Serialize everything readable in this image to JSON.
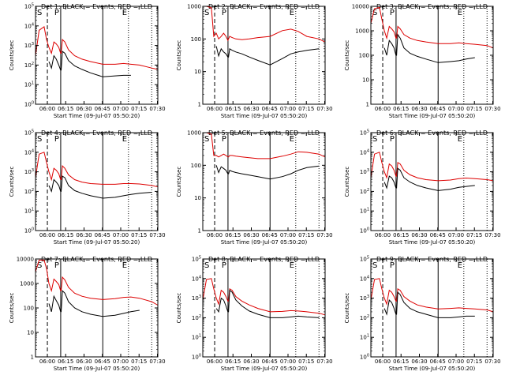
{
  "chart_data": {
    "type": "line",
    "xlabel": "Start Time (09-Jul-07 05:50:20)",
    "ylabel": "Counts/sec",
    "x_ticks": [
      "06:00",
      "06:15",
      "06:30",
      "06:45",
      "07:00",
      "07:15",
      "07:30"
    ],
    "x_range_minutes": [
      0,
      100
    ],
    "series_names": [
      "BLACK = Events",
      "RED = LLD"
    ],
    "colors": {
      "events": "#000000",
      "lld": "#dd0000"
    },
    "markers": {
      "dashed_minute": 9.7,
      "solid_minutes": [
        20.6,
        55.0
      ],
      "dotted_minutes": [
        76.0,
        95.0
      ]
    },
    "event_letters": [
      "S",
      "P",
      "E"
    ],
    "panels": [
      {
        "title": "Det 1: BLACK = Events, RED = LLD",
        "yscale": "log",
        "ylim": [
          1,
          100000
        ],
        "ytick_labels": [
          "10^0",
          "10^1",
          "10^2",
          "10^3",
          "10^4",
          "10^5"
        ],
        "x": [
          0,
          3,
          7,
          9,
          11,
          13,
          15,
          17,
          19,
          20.5,
          21,
          22,
          24,
          27,
          32,
          38,
          45,
          55,
          65,
          72,
          78,
          85,
          95,
          100
        ],
        "lld": [
          300,
          6000,
          9000,
          2000,
          800,
          400,
          1500,
          1200,
          800,
          400,
          400,
          2000,
          1500,
          600,
          300,
          200,
          150,
          110,
          110,
          120,
          110,
          100,
          70,
          60
        ],
        "events": [
          null,
          null,
          null,
          null,
          150,
          70,
          300,
          200,
          100,
          55,
          55,
          500,
          400,
          170,
          90,
          60,
          40,
          25,
          28,
          30,
          30,
          null,
          null,
          null
        ]
      },
      {
        "title": "Det 2: BLACK = Events, RED = LLD",
        "yscale": "log",
        "ylim": [
          1,
          1000
        ],
        "ytick_labels": [
          "1",
          "10",
          "100",
          "1000"
        ],
        "x": [
          0,
          3,
          7,
          9,
          11,
          13,
          15,
          17,
          19,
          20.5,
          21,
          22,
          24,
          27,
          32,
          38,
          45,
          55,
          65,
          72,
          78,
          85,
          95,
          100
        ],
        "lld": [
          1000,
          1000,
          900,
          120,
          150,
          100,
          120,
          150,
          120,
          90,
          100,
          120,
          110,
          100,
          95,
          100,
          110,
          120,
          180,
          200,
          170,
          120,
          100,
          80
        ],
        "events": [
          null,
          null,
          null,
          null,
          60,
          30,
          50,
          40,
          35,
          28,
          28,
          50,
          45,
          40,
          35,
          28,
          22,
          16,
          25,
          35,
          40,
          45,
          50,
          null
        ]
      },
      {
        "title": "Det 3: BLACK = Events, RED = LLD",
        "yscale": "log",
        "ylim": [
          1,
          10000
        ],
        "ytick_labels": [
          "1",
          "10",
          "100",
          "1000",
          "10000"
        ],
        "x": [
          0,
          3,
          7,
          9,
          11,
          13,
          15,
          17,
          19,
          20.5,
          21,
          22,
          24,
          27,
          32,
          38,
          45,
          55,
          65,
          72,
          78,
          85,
          95,
          100
        ],
        "lld": [
          2000,
          8000,
          9000,
          3000,
          1000,
          500,
          1500,
          1200,
          900,
          500,
          500,
          1500,
          1200,
          700,
          500,
          400,
          350,
          300,
          300,
          320,
          300,
          280,
          250,
          200
        ],
        "events": [
          null,
          null,
          null,
          null,
          200,
          100,
          400,
          300,
          200,
          100,
          100,
          700,
          500,
          200,
          120,
          90,
          70,
          50,
          55,
          60,
          70,
          80,
          null,
          null
        ]
      },
      {
        "title": "Det 4: BLACK = Events, RED = LLD",
        "yscale": "log",
        "ylim": [
          1,
          100000
        ],
        "ytick_labels": [
          "10^0",
          "10^1",
          "10^2",
          "10^3",
          "10^4",
          "10^5"
        ],
        "x": [
          0,
          3,
          7,
          9,
          11,
          13,
          15,
          17,
          19,
          20.5,
          21,
          22,
          24,
          27,
          32,
          38,
          45,
          55,
          65,
          72,
          78,
          85,
          95,
          100
        ],
        "lld": [
          500,
          8000,
          10000,
          3000,
          1000,
          400,
          1500,
          1200,
          800,
          400,
          400,
          2000,
          1500,
          700,
          400,
          300,
          250,
          230,
          230,
          250,
          250,
          240,
          200,
          170
        ],
        "events": [
          null,
          null,
          null,
          null,
          200,
          100,
          400,
          300,
          200,
          100,
          100,
          600,
          500,
          200,
          110,
          80,
          60,
          45,
          50,
          60,
          70,
          80,
          90,
          null
        ]
      },
      {
        "title": "Det 5: BLACK = Events, RED = LLD",
        "yscale": "log",
        "ylim": [
          1,
          1000
        ],
        "ytick_labels": [
          "1",
          "10",
          "100",
          "1000"
        ],
        "x": [
          0,
          3,
          7,
          9,
          11,
          13,
          15,
          17,
          19,
          20.5,
          21,
          22,
          24,
          27,
          32,
          38,
          45,
          55,
          65,
          72,
          78,
          85,
          95,
          100
        ],
        "lld": [
          1000,
          1000,
          900,
          200,
          200,
          180,
          200,
          220,
          200,
          180,
          180,
          200,
          200,
          190,
          180,
          170,
          160,
          160,
          190,
          220,
          260,
          250,
          220,
          180
        ],
        "events": [
          null,
          null,
          null,
          null,
          100,
          60,
          90,
          80,
          70,
          55,
          55,
          70,
          65,
          60,
          55,
          50,
          45,
          38,
          45,
          55,
          70,
          85,
          95,
          null
        ]
      },
      {
        "title": "Det 6: BLACK = Events, RED = LLD",
        "yscale": "log",
        "ylim": [
          1,
          100000
        ],
        "ytick_labels": [
          "10^0",
          "10^1",
          "10^2",
          "10^3",
          "10^4",
          "10^5"
        ],
        "x": [
          0,
          3,
          7,
          9,
          11,
          13,
          15,
          17,
          19,
          20.5,
          21,
          22,
          24,
          27,
          32,
          38,
          45,
          55,
          65,
          72,
          78,
          85,
          95,
          100
        ],
        "lld": [
          500,
          8000,
          10000,
          3000,
          1000,
          500,
          2500,
          2000,
          1200,
          600,
          600,
          3000,
          2500,
          1200,
          700,
          500,
          400,
          350,
          380,
          450,
          480,
          450,
          400,
          350
        ],
        "events": [
          null,
          null,
          null,
          null,
          300,
          150,
          600,
          500,
          300,
          150,
          150,
          1500,
          1200,
          500,
          300,
          200,
          150,
          110,
          130,
          160,
          180,
          200,
          null,
          null
        ]
      },
      {
        "title": "Det 7: BLACK = Events, RED = LLD",
        "yscale": "log",
        "ylim": [
          1,
          10000
        ],
        "ytick_labels": [
          "1",
          "10",
          "100",
          "1000",
          "10000"
        ],
        "x": [
          0,
          3,
          7,
          9,
          11,
          13,
          15,
          17,
          19,
          20.5,
          21,
          22,
          24,
          27,
          32,
          38,
          45,
          55,
          65,
          72,
          78,
          85,
          95,
          100
        ],
        "lld": [
          3000,
          9000,
          9000,
          4000,
          1000,
          500,
          1500,
          1200,
          900,
          500,
          500,
          1800,
          1400,
          700,
          400,
          300,
          250,
          220,
          240,
          270,
          280,
          250,
          180,
          130
        ],
        "events": [
          null,
          null,
          null,
          null,
          150,
          70,
          300,
          200,
          130,
          70,
          70,
          500,
          400,
          180,
          100,
          70,
          55,
          45,
          50,
          60,
          70,
          80,
          null,
          null
        ]
      },
      {
        "title": "Det 8: BLACK = Events, RED = LLD",
        "yscale": "log",
        "ylim": [
          1,
          100000
        ],
        "ytick_labels": [
          "10^0",
          "10^1",
          "10^2",
          "10^3",
          "10^4",
          "10^5"
        ],
        "x": [
          0,
          3,
          7,
          9,
          11,
          13,
          15,
          17,
          19,
          20.5,
          21,
          22,
          24,
          27,
          32,
          38,
          45,
          55,
          65,
          72,
          78,
          85,
          95,
          100
        ],
        "lld": [
          800,
          9000,
          10000,
          3000,
          1000,
          500,
          2500,
          2000,
          1200,
          700,
          700,
          3000,
          2500,
          1200,
          700,
          450,
          300,
          200,
          210,
          230,
          220,
          200,
          170,
          140
        ],
        "events": [
          null,
          null,
          null,
          null,
          300,
          200,
          1000,
          800,
          400,
          200,
          200,
          2500,
          2000,
          800,
          400,
          220,
          150,
          100,
          100,
          110,
          120,
          110,
          100,
          null
        ]
      },
      {
        "title": "Det 9: BLACK = Events, RED = LLD",
        "yscale": "log",
        "ylim": [
          1,
          100000
        ],
        "ytick_labels": [
          "10^0",
          "10^1",
          "10^2",
          "10^3",
          "10^4",
          "10^5"
        ],
        "x": [
          0,
          3,
          7,
          9,
          11,
          13,
          15,
          17,
          19,
          20.5,
          21,
          22,
          24,
          27,
          32,
          38,
          45,
          55,
          65,
          72,
          78,
          85,
          95,
          100
        ],
        "lld": [
          800,
          9000,
          10000,
          3000,
          1000,
          500,
          2500,
          2000,
          1200,
          700,
          700,
          3000,
          2500,
          1200,
          700,
          450,
          350,
          280,
          300,
          320,
          300,
          280,
          250,
          200
        ],
        "events": [
          null,
          null,
          null,
          null,
          300,
          150,
          800,
          600,
          300,
          150,
          150,
          2000,
          1500,
          600,
          300,
          200,
          150,
          100,
          100,
          110,
          120,
          120,
          null,
          null
        ]
      }
    ]
  }
}
